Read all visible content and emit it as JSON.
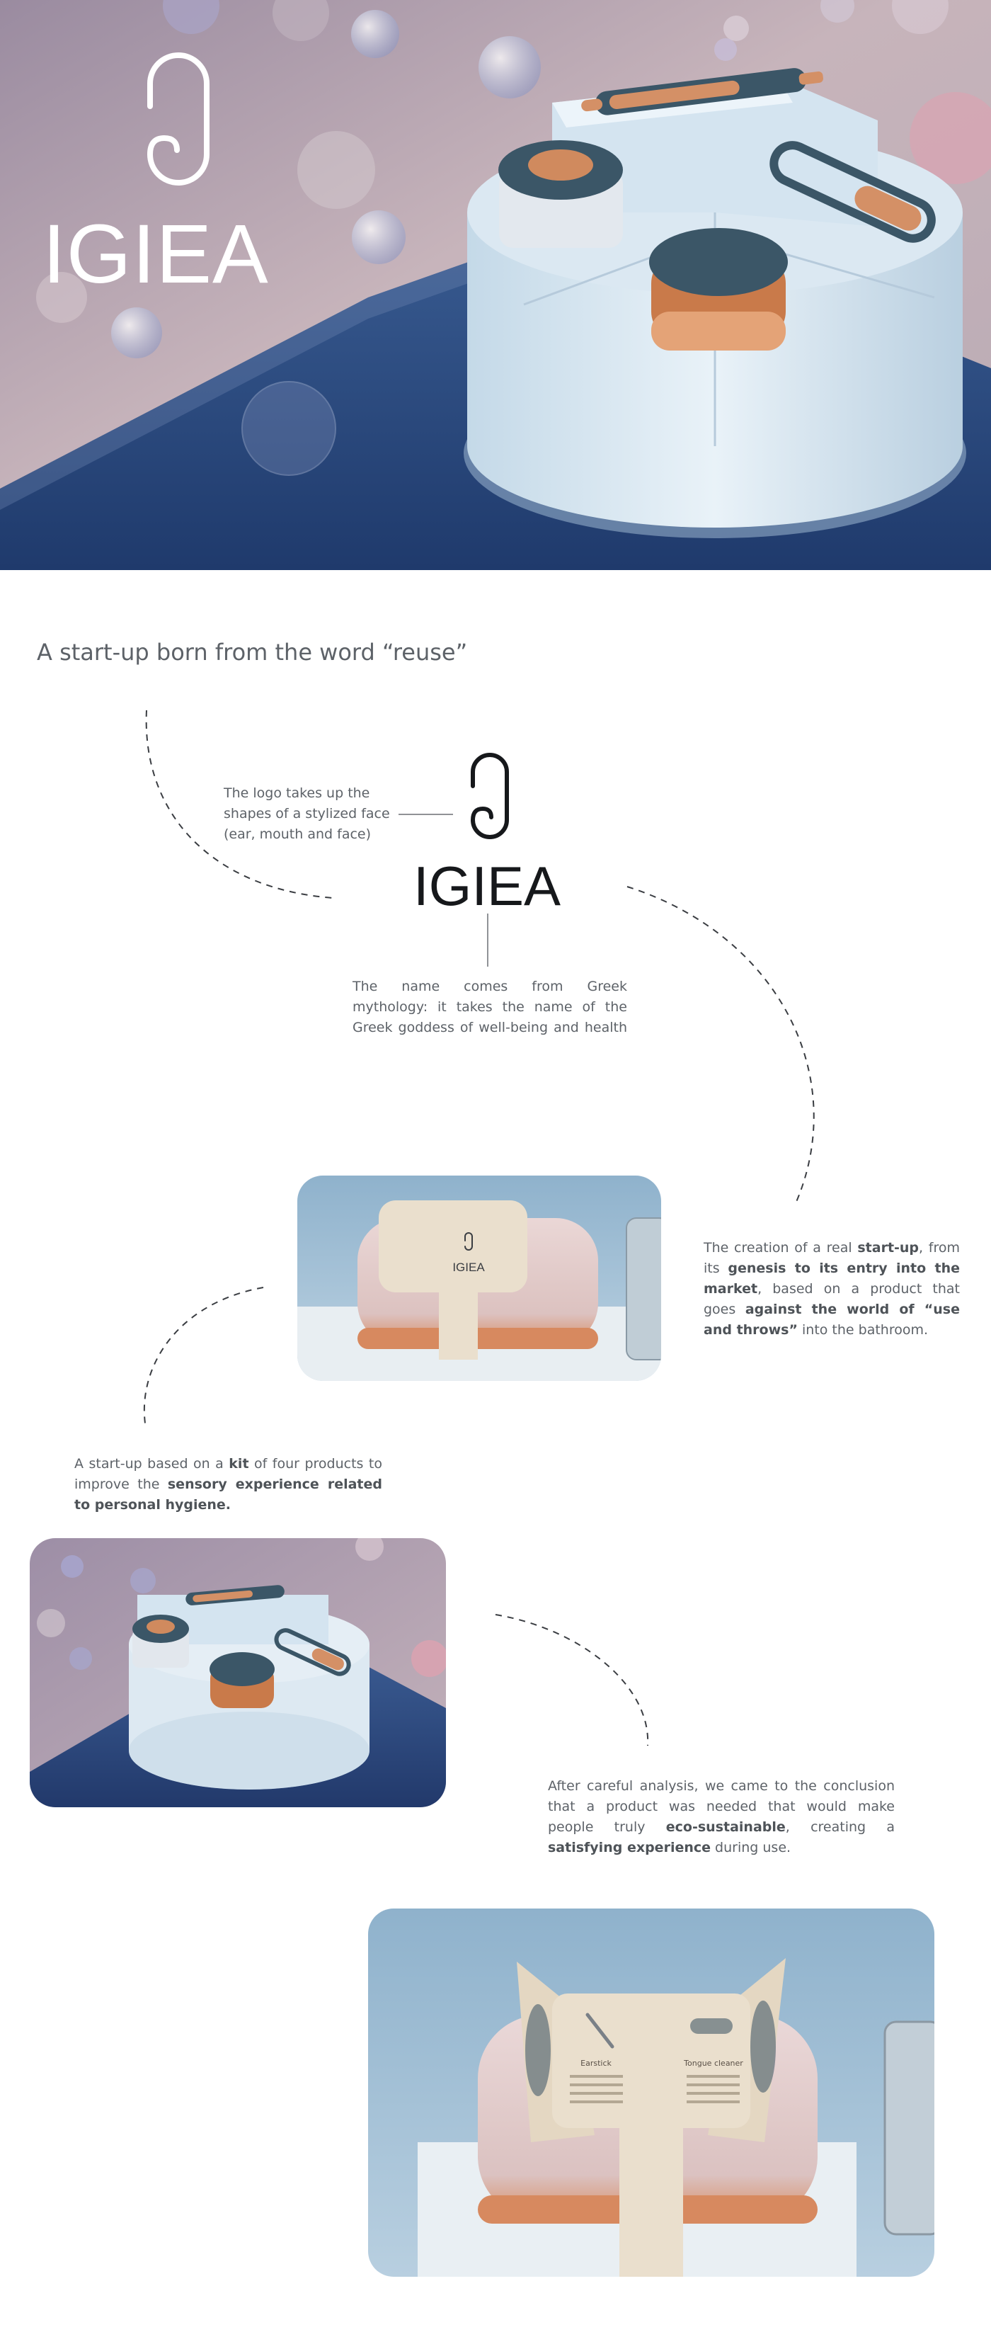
{
  "hero": {
    "brand": "IGIEA"
  },
  "tagline": "A start-up born from the word “reuse”",
  "logo_section": {
    "logo_note": "The logo takes up the shapes of a stylized face (ear, mouth and face)",
    "brand": "IGIEA",
    "name_note": "The name comes from Greek mythology: it takes the name of the Greek goddess of well-being and health"
  },
  "startup_note": {
    "t1": "The creation of a real ",
    "b1": "start-up",
    "t2": ", from its ",
    "b2": "genesis to its entry into the market",
    "t3": ", based on a product that goes ",
    "b3": "against the world of “use and throws”",
    "t4": " into the bathroom."
  },
  "photo1": {
    "sleeve_brand": "IGIEA"
  },
  "kit_note": {
    "t1": "A start-up based on a ",
    "b1": "kit",
    "t2": " of four products to improve the ",
    "b2": "sensory experience related to personal hygiene."
  },
  "analysis_note": {
    "t1": "After careful analysis, we came to the conclusion that a product was needed that would make people truly ",
    "b1": "eco-sustainable",
    "t2": ", creating a ",
    "b2": "satisfying experience",
    "t3": " during use."
  },
  "photo3": {
    "panel_left_title": "Earstick",
    "panel_right_title": "Tongue cleaner"
  },
  "colors": {
    "accent_orange": "#d4865a",
    "slate_blue": "#3c5868",
    "background": "#ffffff",
    "text": "#5d6268"
  }
}
